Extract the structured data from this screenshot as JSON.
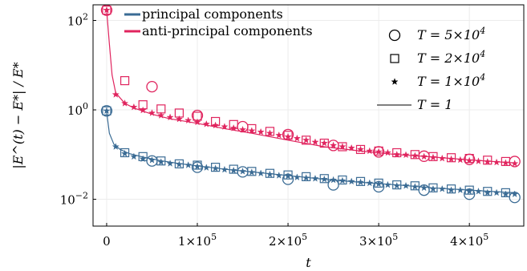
{
  "chart_data": {
    "type": "line",
    "title": "",
    "xlabel": "t",
    "ylabel": "|E^(t) − E*| / E*",
    "xlim": [
      -15000,
      460000
    ],
    "ylim_log10": [
      -2.6,
      2.35
    ],
    "log_y": true,
    "grid": true,
    "x_ticks": [
      {
        "value": 0,
        "label": "0"
      },
      {
        "value": 100000,
        "label": "1×10^5"
      },
      {
        "value": 200000,
        "label": "2×10^5"
      },
      {
        "value": 300000,
        "label": "3×10^5"
      },
      {
        "value": 400000,
        "label": "4×10^5"
      }
    ],
    "y_ticks": [
      {
        "value": 100,
        "label": "10^2"
      },
      {
        "value": 1,
        "label": "10^0"
      },
      {
        "value": 0.01,
        "label": "10^-2"
      }
    ],
    "colors": {
      "principal": "#3a6b94",
      "anti": "#e0245e"
    },
    "legend_left": [
      {
        "name": "principal components",
        "color": "#3a6b94"
      },
      {
        "name": "anti-principal components",
        "color": "#e0245e"
      }
    ],
    "legend_right": [
      {
        "label": "T = 5×10^4",
        "marker": "circle"
      },
      {
        "label": "T = 2×10^4",
        "marker": "square"
      },
      {
        "label": "T = 1×10^4",
        "marker": "star"
      },
      {
        "label": "T = 1",
        "marker": "line"
      }
    ],
    "series": [
      {
        "name": "principal components",
        "T": "5×10^4",
        "marker": "circle",
        "x": [
          0,
          50000,
          100000,
          150000,
          200000,
          250000,
          300000,
          350000,
          400000,
          450000
        ],
        "y": [
          0.95,
          0.072,
          0.052,
          0.041,
          0.028,
          0.021,
          0.019,
          0.016,
          0.013,
          0.011
        ]
      },
      {
        "name": "principal components",
        "T": "2×10^4",
        "marker": "square",
        "x": [
          0,
          20000,
          40000,
          60000,
          80000,
          100000,
          120000,
          140000,
          160000,
          180000,
          200000,
          220000,
          240000,
          260000,
          280000,
          300000,
          320000,
          340000,
          360000,
          380000,
          400000,
          420000,
          440000
        ],
        "y": [
          0.95,
          0.11,
          0.09,
          0.072,
          0.062,
          0.058,
          0.052,
          0.047,
          0.042,
          0.038,
          0.035,
          0.032,
          0.029,
          0.027,
          0.025,
          0.023,
          0.021,
          0.02,
          0.018,
          0.017,
          0.016,
          0.015,
          0.014
        ]
      },
      {
        "name": "principal components",
        "T": "1×10^4",
        "marker": "star",
        "x": [
          0,
          10000,
          20000,
          30000,
          40000,
          50000,
          60000,
          70000,
          80000,
          90000,
          100000,
          110000,
          120000,
          130000,
          140000,
          150000,
          160000,
          170000,
          180000,
          190000,
          200000,
          210000,
          220000,
          230000,
          240000,
          250000,
          260000,
          270000,
          280000,
          290000,
          300000,
          310000,
          320000,
          330000,
          340000,
          350000,
          360000,
          370000,
          380000,
          390000,
          400000,
          410000,
          420000,
          430000,
          440000,
          450000
        ],
        "y": [
          0.95,
          0.15,
          0.105,
          0.09,
          0.08,
          0.075,
          0.068,
          0.063,
          0.06,
          0.058,
          0.054,
          0.051,
          0.049,
          0.046,
          0.044,
          0.042,
          0.04,
          0.038,
          0.036,
          0.034,
          0.033,
          0.031,
          0.03,
          0.029,
          0.028,
          0.027,
          0.026,
          0.025,
          0.024,
          0.023,
          0.022,
          0.021,
          0.02,
          0.02,
          0.019,
          0.018,
          0.017,
          0.017,
          0.016,
          0.016,
          0.015,
          0.015,
          0.014,
          0.014,
          0.013,
          0.013
        ]
      },
      {
        "name": "principal components",
        "T": "1",
        "marker": "line",
        "x": [
          0,
          3000,
          8000,
          15000,
          25000,
          40000,
          60000,
          80000,
          100000,
          130000,
          160000,
          200000,
          240000,
          280000,
          320000,
          360000,
          400000,
          450000
        ],
        "y": [
          0.9,
          0.3,
          0.17,
          0.13,
          0.105,
          0.088,
          0.073,
          0.063,
          0.056,
          0.047,
          0.041,
          0.034,
          0.028,
          0.024,
          0.021,
          0.018,
          0.016,
          0.014
        ]
      },
      {
        "name": "anti-principal components",
        "T": "5×10^4",
        "marker": "circle",
        "x": [
          0,
          50000,
          100000,
          150000,
          200000,
          250000,
          300000,
          350000,
          400000,
          450000
        ],
        "y": [
          170,
          3.3,
          0.75,
          0.42,
          0.28,
          0.16,
          0.115,
          0.092,
          0.078,
          0.07
        ]
      },
      {
        "name": "anti-principal components",
        "T": "2×10^4",
        "marker": "square",
        "x": [
          0,
          20000,
          40000,
          60000,
          80000,
          100000,
          120000,
          140000,
          160000,
          180000,
          200000,
          220000,
          240000,
          260000,
          280000,
          300000,
          320000,
          340000,
          360000,
          380000,
          400000,
          420000,
          440000
        ],
        "y": [
          170,
          4.5,
          1.3,
          1.05,
          0.85,
          0.72,
          0.55,
          0.47,
          0.38,
          0.33,
          0.27,
          0.21,
          0.18,
          0.15,
          0.13,
          0.12,
          0.11,
          0.1,
          0.09,
          0.085,
          0.082,
          0.075,
          0.07
        ]
      },
      {
        "name": "anti-principal components",
        "T": "1×10^4",
        "marker": "star",
        "x": [
          0,
          10000,
          20000,
          30000,
          40000,
          50000,
          60000,
          70000,
          80000,
          90000,
          100000,
          110000,
          120000,
          130000,
          140000,
          150000,
          160000,
          170000,
          180000,
          190000,
          200000,
          210000,
          220000,
          230000,
          240000,
          250000,
          260000,
          270000,
          280000,
          290000,
          300000,
          310000,
          320000,
          330000,
          340000,
          350000,
          360000,
          370000,
          380000,
          390000,
          400000,
          410000,
          420000,
          430000,
          440000,
          450000
        ],
        "y": [
          170,
          2.2,
          1.4,
          1.15,
          0.98,
          0.85,
          0.75,
          0.68,
          0.62,
          0.58,
          0.53,
          0.48,
          0.45,
          0.42,
          0.39,
          0.36,
          0.34,
          0.32,
          0.3,
          0.27,
          0.25,
          0.23,
          0.21,
          0.19,
          0.18,
          0.16,
          0.15,
          0.14,
          0.13,
          0.12,
          0.115,
          0.11,
          0.1,
          0.098,
          0.094,
          0.09,
          0.086,
          0.082,
          0.079,
          0.076,
          0.073,
          0.071,
          0.069,
          0.067,
          0.065,
          0.063
        ]
      },
      {
        "name": "anti-principal components",
        "T": "1",
        "marker": "line",
        "x": [
          0,
          3000,
          6000,
          10000,
          20000,
          30000,
          50000,
          70000,
          100000,
          130000,
          160000,
          200000,
          240000,
          280000,
          320000,
          360000,
          400000,
          450000
        ],
        "y": [
          170,
          30,
          6,
          2.4,
          1.4,
          1.1,
          0.8,
          0.63,
          0.5,
          0.38,
          0.3,
          0.21,
          0.15,
          0.12,
          0.1,
          0.088,
          0.076,
          0.065
        ]
      }
    ]
  }
}
